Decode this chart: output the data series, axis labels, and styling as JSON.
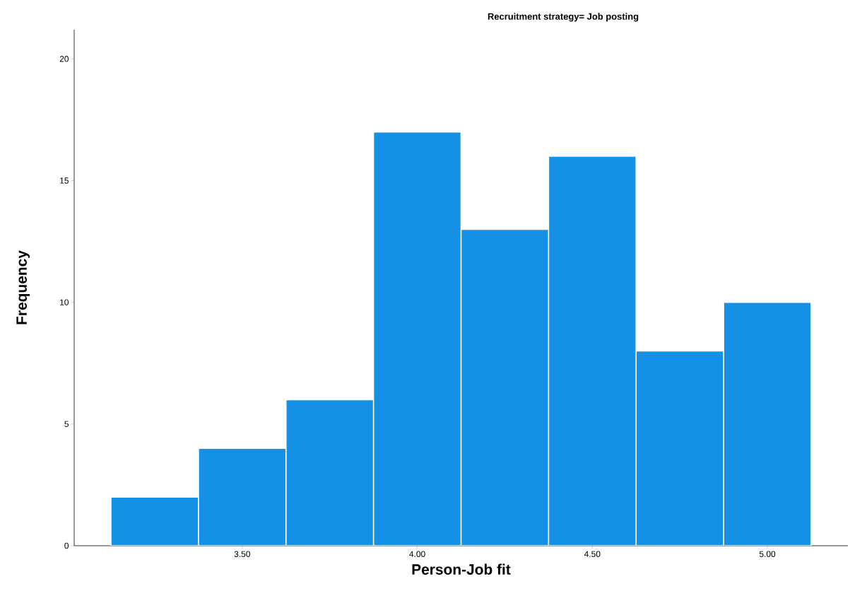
{
  "chart_data": {
    "type": "histogram",
    "title": "Recruitment strategy= Job posting",
    "xlabel": "Person-Job fit",
    "ylabel": "Frequency",
    "bins": [
      3.125,
      3.375,
      3.625,
      3.875,
      4.125,
      4.375,
      4.625,
      4.875,
      5.125
    ],
    "values": [
      2,
      4,
      6,
      17,
      13,
      16,
      8,
      10
    ],
    "color": "#1490e4",
    "xlim": [
      3.02,
      5.23
    ],
    "ylim": [
      0,
      21.2
    ],
    "xticks": [
      {
        "value": 3.5,
        "label": "3.50"
      },
      {
        "value": 4.0,
        "label": "4.00"
      },
      {
        "value": 4.5,
        "label": "4.50"
      },
      {
        "value": 5.0,
        "label": "5.00"
      }
    ],
    "yticks": [
      0,
      5,
      10,
      15,
      20
    ]
  }
}
